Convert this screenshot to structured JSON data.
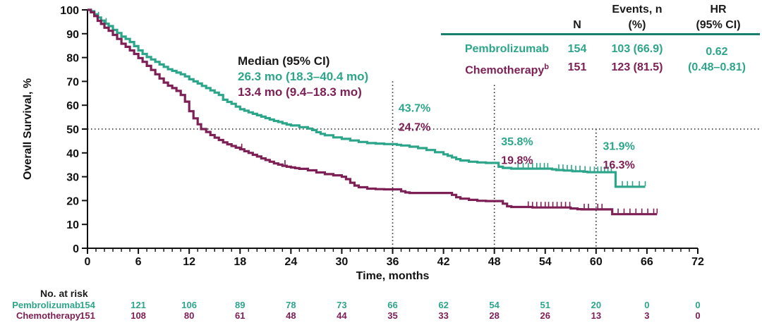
{
  "chart_data": {
    "type": "line",
    "subtype": "kaplan-meier-step",
    "title": "",
    "xlabel": "Time, months",
    "ylabel": "Overall Survival, %",
    "xlim": [
      0,
      72
    ],
    "ylim": [
      0,
      100
    ],
    "xticks": [
      0,
      6,
      12,
      18,
      24,
      30,
      36,
      42,
      48,
      54,
      60,
      66,
      72
    ],
    "yticks": [
      0,
      10,
      20,
      30,
      40,
      50,
      60,
      70,
      80,
      90,
      100
    ],
    "x_minor_tick_interval": 1,
    "grid": false,
    "reference_lines": {
      "horizontal_pct": 50,
      "vertical": [
        {
          "month": 36,
          "top_pct": 70
        },
        {
          "month": 48,
          "top_pct": 68.5
        },
        {
          "month": 60,
          "top_pct": 50
        }
      ]
    },
    "series": [
      {
        "name": "Pembrolizumab",
        "color": "#2da58a",
        "median": "26.3 mo (18.3–40.4 mo)",
        "steps": [
          [
            0,
            100
          ],
          [
            0.4,
            99.4
          ],
          [
            0.8,
            98.1
          ],
          [
            1.2,
            96.8
          ],
          [
            1.6,
            95.5
          ],
          [
            2,
            94.2
          ],
          [
            2.5,
            93.2
          ],
          [
            3,
            91.6
          ],
          [
            3.5,
            90.3
          ],
          [
            4,
            88.8
          ],
          [
            4.5,
            87.8
          ],
          [
            5,
            86.5
          ],
          [
            5.5,
            84.8
          ],
          [
            6,
            83
          ],
          [
            6.5,
            81.5
          ],
          [
            7,
            80.2
          ],
          [
            7.5,
            79.2
          ],
          [
            8,
            78.2
          ],
          [
            8.5,
            77.1
          ],
          [
            9,
            76.1
          ],
          [
            9.5,
            75.1
          ],
          [
            10,
            74.4
          ],
          [
            10.5,
            73.7
          ],
          [
            11,
            73
          ],
          [
            11.5,
            72.1
          ],
          [
            12,
            70.9
          ],
          [
            12.5,
            70
          ],
          [
            13,
            69.1
          ],
          [
            13.5,
            68.1
          ],
          [
            14,
            67.2
          ],
          [
            14.5,
            66.2
          ],
          [
            15,
            65.3
          ],
          [
            15.5,
            64.3
          ],
          [
            16,
            62.3
          ],
          [
            16.5,
            61.4
          ],
          [
            17,
            60.6
          ],
          [
            17.5,
            59.4
          ],
          [
            18,
            58.3
          ],
          [
            18.5,
            57.7
          ],
          [
            19,
            57
          ],
          [
            19.5,
            56.4
          ],
          [
            20,
            55.8
          ],
          [
            20.5,
            55.2
          ],
          [
            21,
            54.6
          ],
          [
            21.5,
            54
          ],
          [
            22,
            53.4
          ],
          [
            22.5,
            53
          ],
          [
            23,
            52.4
          ],
          [
            23.5,
            51.9
          ],
          [
            24,
            51.5
          ],
          [
            25,
            50.8
          ],
          [
            26,
            50.2
          ],
          [
            26.5,
            49.6
          ],
          [
            27,
            48.7
          ],
          [
            27.5,
            48
          ],
          [
            28,
            47.4
          ],
          [
            29,
            46.5
          ],
          [
            30,
            45.9
          ],
          [
            31,
            45.2
          ],
          [
            32,
            44.6
          ],
          [
            33,
            44.1
          ],
          [
            34,
            43.9
          ],
          [
            35,
            43.7
          ],
          [
            36.5,
            43.4
          ],
          [
            37,
            43.1
          ],
          [
            38,
            42.6
          ],
          [
            39,
            42
          ],
          [
            40,
            41.2
          ],
          [
            41,
            40.3
          ],
          [
            42,
            39.4
          ],
          [
            42.5,
            38.8
          ],
          [
            43,
            38.1
          ],
          [
            43.5,
            37.4
          ],
          [
            44,
            36.8
          ],
          [
            45,
            36.3
          ],
          [
            46,
            36
          ],
          [
            47,
            35.8
          ],
          [
            48.5,
            34.2
          ],
          [
            49,
            33.7
          ],
          [
            50,
            33.4
          ],
          [
            54.8,
            33.1
          ],
          [
            55.3,
            32.8
          ],
          [
            56.2,
            32.6
          ],
          [
            57.2,
            32.3
          ],
          [
            58.5,
            32.1
          ],
          [
            59,
            31.9
          ],
          [
            62.3,
            25.8
          ],
          [
            65.8,
            25.8
          ]
        ],
        "censor_months": [
          1.3,
          2.2,
          50.8,
          51.4,
          52,
          52.5,
          53,
          53.4,
          53.9,
          54.3,
          55.6,
          56.1,
          56.6,
          57.1,
          57.6,
          58.1,
          58.7,
          59.3,
          59.8,
          60.2,
          60.6,
          61,
          61.4,
          61.8,
          63.1,
          63.7,
          64.3,
          65.1,
          65.8
        ]
      },
      {
        "name": "Chemotherapy",
        "color": "#7d2055",
        "median": "13.4 mo (9.4–18.3 mo)",
        "steps": [
          [
            0,
            100
          ],
          [
            0.4,
            99
          ],
          [
            0.8,
            97.4
          ],
          [
            1.2,
            95.4
          ],
          [
            1.6,
            94.1
          ],
          [
            2,
            92.5
          ],
          [
            2.5,
            91.2
          ],
          [
            3,
            89.5
          ],
          [
            3.5,
            87.8
          ],
          [
            4,
            85.8
          ],
          [
            4.5,
            84.5
          ],
          [
            5,
            83
          ],
          [
            5.5,
            81.5
          ],
          [
            6,
            79.8
          ],
          [
            6.5,
            78.2
          ],
          [
            7,
            76.5
          ],
          [
            7.5,
            74.8
          ],
          [
            8,
            73
          ],
          [
            8.5,
            71.2
          ],
          [
            9,
            69.5
          ],
          [
            9.5,
            68.2
          ],
          [
            10,
            67.2
          ],
          [
            10.5,
            66
          ],
          [
            11,
            64.3
          ],
          [
            11.5,
            61.5
          ],
          [
            12,
            57.5
          ],
          [
            12.5,
            54.5
          ],
          [
            13,
            52
          ],
          [
            13.4,
            50
          ],
          [
            14,
            48.8
          ],
          [
            14.5,
            47.5
          ],
          [
            15,
            46.4
          ],
          [
            15.5,
            45.4
          ],
          [
            16,
            44.4
          ],
          [
            16.5,
            43.6
          ],
          [
            17,
            42.9
          ],
          [
            17.5,
            42.2
          ],
          [
            18,
            41.5
          ],
          [
            18.5,
            40.7
          ],
          [
            19,
            40
          ],
          [
            19.5,
            39.2
          ],
          [
            20,
            38.5
          ],
          [
            20.5,
            37.7
          ],
          [
            21,
            37
          ],
          [
            21.5,
            36.3
          ],
          [
            22,
            35.6
          ],
          [
            22.5,
            35.1
          ],
          [
            23,
            34.6
          ],
          [
            23.5,
            34.2
          ],
          [
            24,
            33.9
          ],
          [
            24.5,
            33.6
          ],
          [
            25,
            33.3
          ],
          [
            26,
            32.7
          ],
          [
            27,
            31.8
          ],
          [
            28,
            31.1
          ],
          [
            29,
            30.6
          ],
          [
            30,
            30
          ],
          [
            30.5,
            29
          ],
          [
            31,
            27.5
          ],
          [
            31.5,
            26.3
          ],
          [
            32,
            25.6
          ],
          [
            33,
            25
          ],
          [
            34,
            24.8
          ],
          [
            35,
            24.7
          ],
          [
            37,
            23.9
          ],
          [
            37.5,
            23.4
          ],
          [
            38,
            23.2
          ],
          [
            43,
            22.4
          ],
          [
            43.5,
            21.4
          ],
          [
            44,
            20.8
          ],
          [
            45,
            20.3
          ],
          [
            46,
            19.9
          ],
          [
            47,
            19.8
          ],
          [
            49,
            18.7
          ],
          [
            49.5,
            17.6
          ],
          [
            50,
            17.3
          ],
          [
            52.5,
            17.1
          ],
          [
            57,
            16.7
          ],
          [
            57.8,
            16.4
          ],
          [
            58.3,
            16.3
          ],
          [
            61.9,
            14.3
          ],
          [
            67.2,
            14.3
          ]
        ],
        "censor_months": [
          18.2,
          23.3,
          52,
          52.5,
          53,
          53.5,
          54,
          54.4,
          54.9,
          55.4,
          55.9,
          56.4,
          56.9,
          58.6,
          59.1,
          60.2,
          60.7,
          62.6,
          63.3,
          64,
          64.7,
          65.4,
          66.1,
          66.8,
          67.2
        ]
      }
    ],
    "landmark_annotations": [
      {
        "anchor_month": 36.7,
        "entries": [
          {
            "series_index": 0,
            "text": "43.7%",
            "label_pct_y": 59
          },
          {
            "series_index": 1,
            "text": "24.7%",
            "label_pct_y": 51
          }
        ]
      },
      {
        "anchor_month": 48.8,
        "entries": [
          {
            "series_index": 0,
            "text": "35.8%",
            "label_pct_y": 45
          },
          {
            "series_index": 1,
            "text": "19.8%",
            "label_pct_y": 37.2
          }
        ]
      },
      {
        "anchor_month": 60.8,
        "entries": [
          {
            "series_index": 0,
            "text": "31.9%",
            "label_pct_y": 43
          },
          {
            "series_index": 1,
            "text": "16.3%",
            "label_pct_y": 35.2
          }
        ]
      }
    ]
  },
  "median_box": {
    "title": "Median (95% CI)",
    "pembrolizumab": "26.3 mo (18.3–40.4 mo)",
    "chemotherapy": "13.4 mo (9.4–18.3 mo)"
  },
  "summary_table": {
    "header_n": "N",
    "header_events_line1": "Events, n",
    "header_events_line2": "(%)",
    "header_hr_line1": "HR",
    "header_hr_line2": "(95% CI)",
    "rows": [
      {
        "label": "Pembrolizumab",
        "n": "154",
        "events": "103 (66.9)"
      },
      {
        "label": "Chemotherapy",
        "label_sup": "b",
        "n": "151",
        "events": "123 (81.5)"
      }
    ],
    "hr_value": "0.62",
    "hr_ci": "(0.48–0.81)"
  },
  "risk_table": {
    "title": "No. at risk",
    "months": [
      0,
      6,
      12,
      18,
      24,
      30,
      36,
      42,
      48,
      54,
      60,
      66,
      72
    ],
    "rows": [
      {
        "label": "Pembrolizumab",
        "values": [
          154,
          121,
          106,
          89,
          78,
          73,
          66,
          62,
          54,
          51,
          20,
          0,
          0
        ]
      },
      {
        "label": "Chemotherapy",
        "values": [
          151,
          108,
          80,
          61,
          48,
          44,
          35,
          33,
          28,
          26,
          13,
          3,
          0
        ]
      }
    ]
  }
}
